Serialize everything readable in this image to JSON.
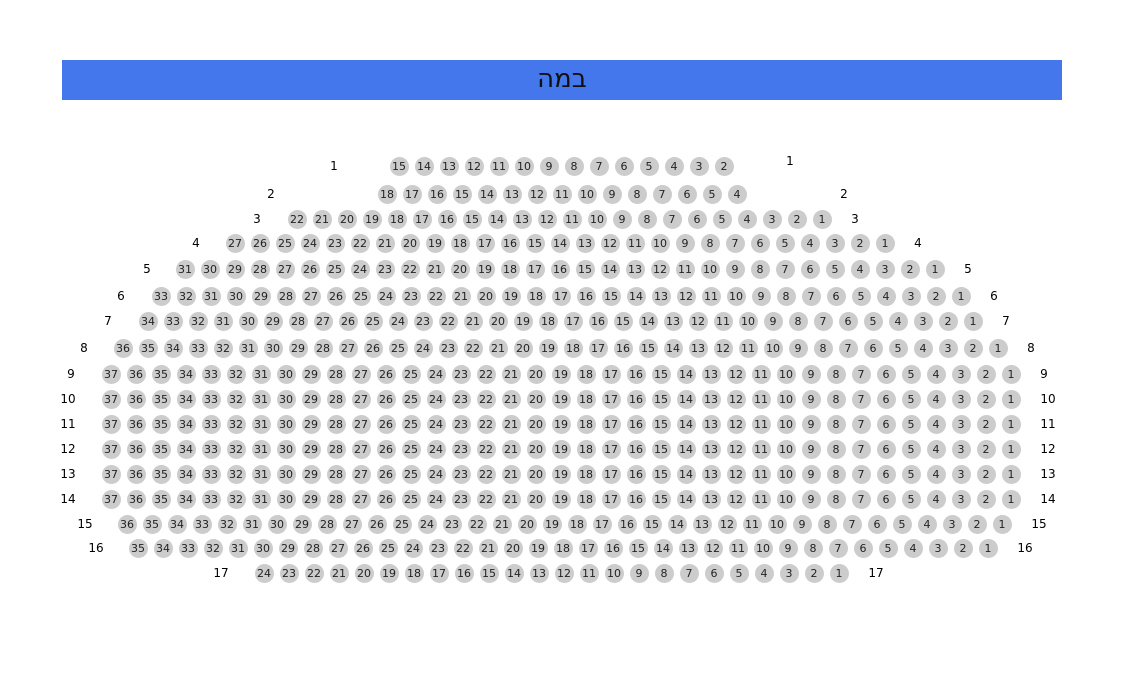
{
  "stage": {
    "label": "במה",
    "color": "#4476ec"
  },
  "seat_color": "#cccccc",
  "rows": [
    {
      "label": "1",
      "from": 15,
      "to": 2
    },
    {
      "label": "2",
      "from": 18,
      "to": 4
    },
    {
      "label": "3",
      "from": 22,
      "to": 1
    },
    {
      "label": "4",
      "from": 27,
      "to": 1
    },
    {
      "label": "5",
      "from": 31,
      "to": 1
    },
    {
      "label": "6",
      "from": 33,
      "to": 1
    },
    {
      "label": "7",
      "from": 34,
      "to": 1
    },
    {
      "label": "8",
      "from": 36,
      "to": 1
    },
    {
      "label": "9",
      "from": 37,
      "to": 1
    },
    {
      "label": "10",
      "from": 37,
      "to": 1
    },
    {
      "label": "11",
      "from": 37,
      "to": 1
    },
    {
      "label": "12",
      "from": 37,
      "to": 1
    },
    {
      "label": "13",
      "from": 37,
      "to": 1
    },
    {
      "label": "14",
      "from": 37,
      "to": 1
    },
    {
      "label": "15",
      "from": 36,
      "to": 1
    },
    {
      "label": "16",
      "from": 35,
      "to": 1
    },
    {
      "label": "17",
      "from": 24,
      "to": 1
    }
  ]
}
